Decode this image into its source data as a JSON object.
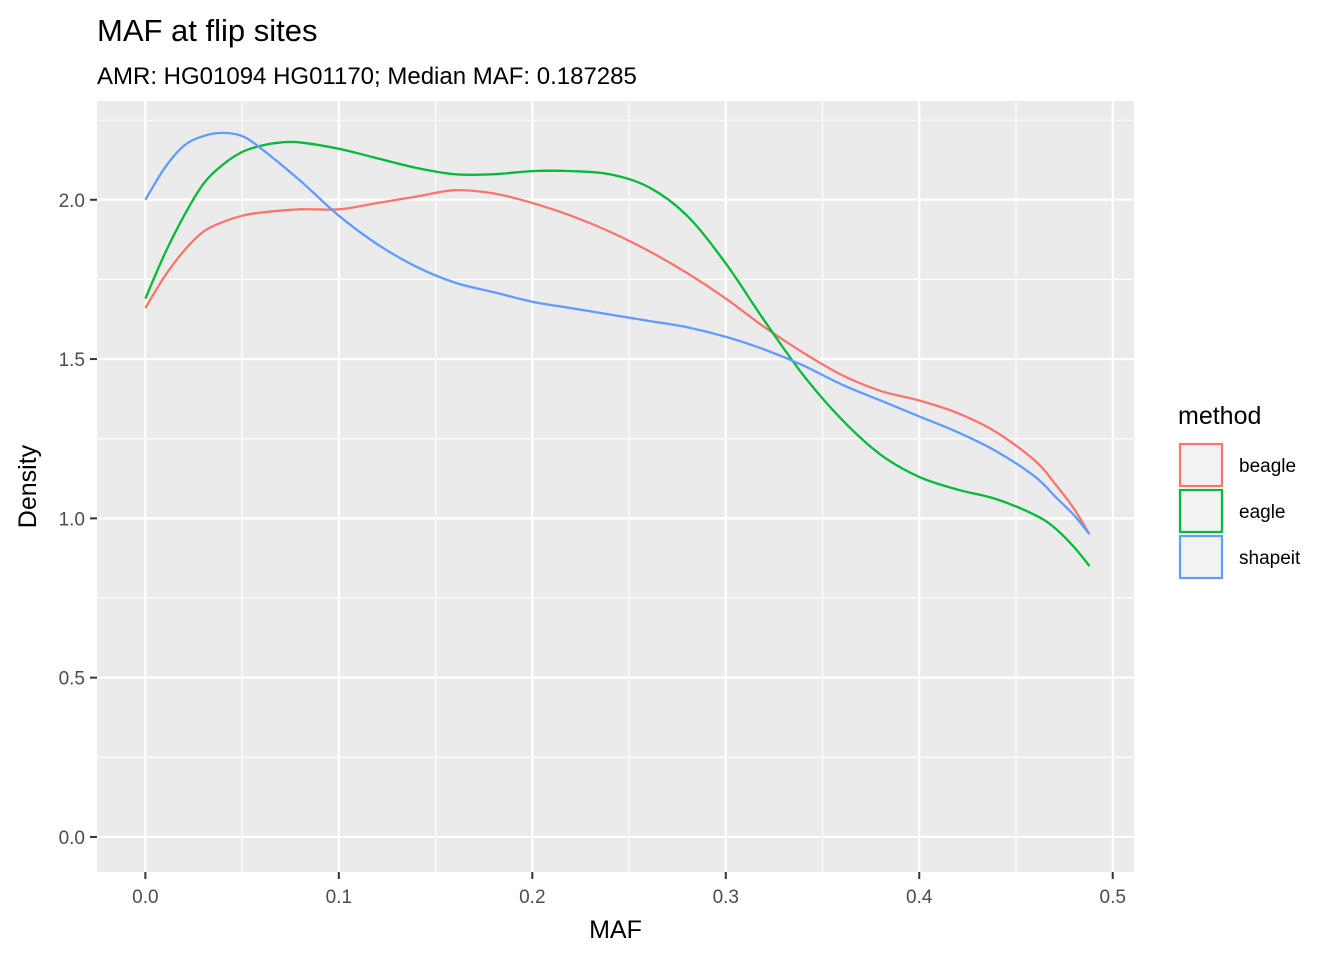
{
  "chart_data": {
    "type": "line",
    "title": "MAF at flip sites",
    "subtitle": "AMR: HG01094 HG01170; Median MAF: 0.187285",
    "xlabel": "MAF",
    "ylabel": "Density",
    "xlim": [
      -0.025,
      0.511
    ],
    "ylim": [
      -0.11,
      2.31
    ],
    "x_ticks": [
      0.0,
      0.1,
      0.2,
      0.3,
      0.4,
      0.5
    ],
    "x_tick_labels": [
      "0.0",
      "0.1",
      "0.2",
      "0.3",
      "0.4",
      "0.5"
    ],
    "y_ticks": [
      0.0,
      0.5,
      1.0,
      1.5,
      2.0
    ],
    "y_tick_labels": [
      "0.0",
      "0.5",
      "1.0",
      "1.5",
      "2.0"
    ],
    "grid": true,
    "background": "#EBEBEB",
    "legend": {
      "title": "method",
      "position": "right"
    },
    "series": [
      {
        "name": "beagle",
        "color": "#F8766D",
        "points": [
          [
            0.0,
            1.66
          ],
          [
            0.01,
            1.76
          ],
          [
            0.02,
            1.84
          ],
          [
            0.03,
            1.9
          ],
          [
            0.04,
            1.93
          ],
          [
            0.05,
            1.95
          ],
          [
            0.06,
            1.96
          ],
          [
            0.08,
            1.97
          ],
          [
            0.1,
            1.97
          ],
          [
            0.12,
            1.99
          ],
          [
            0.14,
            2.01
          ],
          [
            0.16,
            2.03
          ],
          [
            0.18,
            2.02
          ],
          [
            0.2,
            1.99
          ],
          [
            0.22,
            1.95
          ],
          [
            0.24,
            1.9
          ],
          [
            0.26,
            1.84
          ],
          [
            0.28,
            1.77
          ],
          [
            0.3,
            1.69
          ],
          [
            0.32,
            1.6
          ],
          [
            0.34,
            1.52
          ],
          [
            0.36,
            1.45
          ],
          [
            0.38,
            1.4
          ],
          [
            0.4,
            1.37
          ],
          [
            0.42,
            1.33
          ],
          [
            0.44,
            1.27
          ],
          [
            0.46,
            1.18
          ],
          [
            0.47,
            1.11
          ],
          [
            0.48,
            1.03
          ],
          [
            0.488,
            0.95
          ]
        ]
      },
      {
        "name": "eagle",
        "color": "#00BA38",
        "points": [
          [
            0.0,
            1.69
          ],
          [
            0.01,
            1.83
          ],
          [
            0.02,
            1.95
          ],
          [
            0.03,
            2.05
          ],
          [
            0.04,
            2.11
          ],
          [
            0.05,
            2.15
          ],
          [
            0.06,
            2.17
          ],
          [
            0.07,
            2.18
          ],
          [
            0.08,
            2.18
          ],
          [
            0.1,
            2.16
          ],
          [
            0.12,
            2.13
          ],
          [
            0.14,
            2.1
          ],
          [
            0.16,
            2.08
          ],
          [
            0.18,
            2.08
          ],
          [
            0.2,
            2.09
          ],
          [
            0.22,
            2.09
          ],
          [
            0.24,
            2.08
          ],
          [
            0.26,
            2.04
          ],
          [
            0.28,
            1.95
          ],
          [
            0.3,
            1.8
          ],
          [
            0.32,
            1.62
          ],
          [
            0.34,
            1.45
          ],
          [
            0.36,
            1.31
          ],
          [
            0.38,
            1.2
          ],
          [
            0.4,
            1.13
          ],
          [
            0.42,
            1.09
          ],
          [
            0.44,
            1.06
          ],
          [
            0.46,
            1.01
          ],
          [
            0.47,
            0.97
          ],
          [
            0.48,
            0.91
          ],
          [
            0.488,
            0.85
          ]
        ]
      },
      {
        "name": "shapeit",
        "color": "#619CFF",
        "points": [
          [
            0.0,
            2.0
          ],
          [
            0.01,
            2.1
          ],
          [
            0.02,
            2.17
          ],
          [
            0.03,
            2.2
          ],
          [
            0.04,
            2.21
          ],
          [
            0.05,
            2.2
          ],
          [
            0.06,
            2.16
          ],
          [
            0.08,
            2.06
          ],
          [
            0.1,
            1.95
          ],
          [
            0.12,
            1.86
          ],
          [
            0.14,
            1.79
          ],
          [
            0.16,
            1.74
          ],
          [
            0.18,
            1.71
          ],
          [
            0.2,
            1.68
          ],
          [
            0.22,
            1.66
          ],
          [
            0.24,
            1.64
          ],
          [
            0.26,
            1.62
          ],
          [
            0.28,
            1.6
          ],
          [
            0.3,
            1.57
          ],
          [
            0.32,
            1.53
          ],
          [
            0.34,
            1.48
          ],
          [
            0.36,
            1.42
          ],
          [
            0.38,
            1.37
          ],
          [
            0.4,
            1.32
          ],
          [
            0.42,
            1.27
          ],
          [
            0.44,
            1.21
          ],
          [
            0.46,
            1.13
          ],
          [
            0.47,
            1.07
          ],
          [
            0.48,
            1.01
          ],
          [
            0.488,
            0.95
          ]
        ]
      }
    ]
  }
}
